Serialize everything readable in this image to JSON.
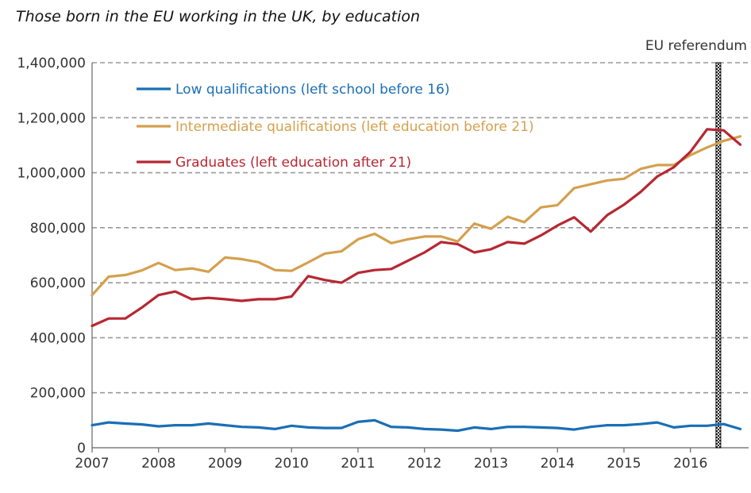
{
  "chart_data": {
    "type": "line",
    "title": "Those born in the EU working in the UK, by education",
    "ylim": [
      0,
      1400000
    ],
    "yticks": [
      0,
      200000,
      400000,
      600000,
      800000,
      1000000,
      1200000,
      1400000
    ],
    "ytick_labels": [
      "0",
      "200,000",
      "400,000",
      "600,000",
      "800,000",
      "1,000,000",
      "1,200,000",
      "1,400,000"
    ],
    "xlim": [
      2007,
      2016.875
    ],
    "xticks": [
      2007,
      2008,
      2009,
      2010,
      2011,
      2012,
      2013,
      2014,
      2015,
      2016
    ],
    "xtick_labels": [
      "2007",
      "2008",
      "2009",
      "2010",
      "2011",
      "2012",
      "2013",
      "2014",
      "2015",
      "2016"
    ],
    "grid": true,
    "legend_position": "top-left",
    "annotation": {
      "label": "EU referendum",
      "x": 2016.42
    },
    "x": [
      2007.0,
      2007.25,
      2007.5,
      2007.75,
      2008.0,
      2008.25,
      2008.5,
      2008.75,
      2009.0,
      2009.25,
      2009.5,
      2009.75,
      2010.0,
      2010.25,
      2010.5,
      2010.75,
      2011.0,
      2011.25,
      2011.5,
      2011.75,
      2012.0,
      2012.25,
      2012.5,
      2012.75,
      2013.0,
      2013.25,
      2013.5,
      2013.75,
      2014.0,
      2014.25,
      2014.5,
      2014.75,
      2015.0,
      2015.25,
      2015.5,
      2015.75,
      2016.0,
      2016.25,
      2016.5,
      2016.75
    ],
    "series": [
      {
        "name": "Low qualifications (left school before 16)",
        "color": "#1A6FB5",
        "values": [
          82000,
          92000,
          88000,
          85000,
          78000,
          82000,
          82000,
          88000,
          82000,
          76000,
          74000,
          68000,
          80000,
          74000,
          72000,
          72000,
          94000,
          100000,
          76000,
          74000,
          68000,
          66000,
          62000,
          74000,
          68000,
          76000,
          76000,
          74000,
          72000,
          66000,
          76000,
          82000,
          82000,
          86000,
          92000,
          74000,
          80000,
          80000,
          86000,
          68000
        ]
      },
      {
        "name": "Intermediate qualifications (left education before 21)",
        "color": "#D4A04E",
        "values": [
          555000,
          622000,
          628000,
          645000,
          672000,
          646000,
          652000,
          640000,
          692000,
          686000,
          675000,
          646000,
          643000,
          674000,
          706000,
          714000,
          758000,
          778000,
          744000,
          758000,
          768000,
          768000,
          750000,
          815000,
          796000,
          840000,
          820000,
          874000,
          882000,
          944000,
          958000,
          972000,
          978000,
          1014000,
          1028000,
          1028000,
          1064000,
          1092000,
          1116000,
          1132000
        ]
      },
      {
        "name": "Graduates (left education after 21)",
        "color": "#B72732",
        "values": [
          443000,
          470000,
          470000,
          510000,
          555000,
          568000,
          540000,
          545000,
          540000,
          534000,
          540000,
          540000,
          550000,
          624000,
          610000,
          600000,
          636000,
          646000,
          650000,
          680000,
          710000,
          748000,
          740000,
          710000,
          722000,
          748000,
          742000,
          772000,
          808000,
          838000,
          786000,
          846000,
          884000,
          930000,
          986000,
          1020000,
          1076000,
          1158000,
          1154000,
          1102000
        ]
      }
    ]
  }
}
